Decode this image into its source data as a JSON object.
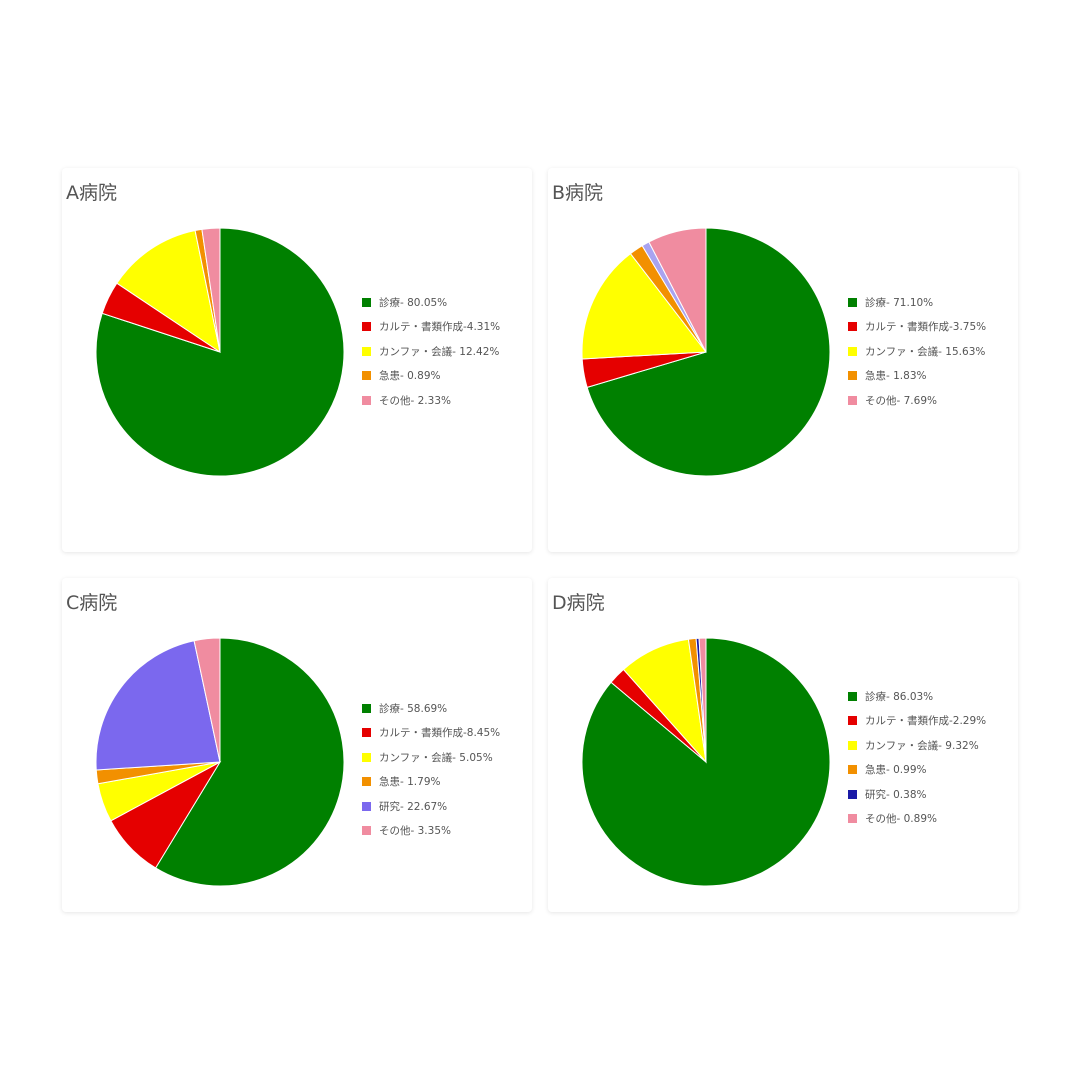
{
  "chart_data": [
    {
      "type": "pie",
      "title": "A病院",
      "slices": [
        {
          "label": "診療- 80.05%",
          "value": 80.05,
          "color": "#008000"
        },
        {
          "label": "カルテ・書類作成-4.31%",
          "value": 4.31,
          "color": "#e50000"
        },
        {
          "label": "カンファ・会議- 12.42%",
          "value": 12.42,
          "color": "#ffff00"
        },
        {
          "label": "急患- 0.89%",
          "value": 0.89,
          "color": "#f29000"
        },
        {
          "label": "その他- 2.33%",
          "value": 2.33,
          "color": "#f08ca0"
        }
      ],
      "legend_position": "right"
    },
    {
      "type": "pie",
      "title": "B病院",
      "slices": [
        {
          "label": "診療- 71.10%",
          "value": 71.1,
          "color": "#008000"
        },
        {
          "label": "カルテ・書類作成-3.75%",
          "value": 3.75,
          "color": "#e50000"
        },
        {
          "label": "カンファ・会議- 15.63%",
          "value": 15.63,
          "color": "#ffff00"
        },
        {
          "label": "急患- 1.83%",
          "value": 1.83,
          "color": "#f29000"
        },
        {
          "label": "",
          "value": 1.0,
          "color": "#a9a3f0"
        },
        {
          "label": "その他- 7.69%",
          "value": 7.69,
          "color": "#f08ca0"
        }
      ],
      "legend_position": "right"
    },
    {
      "type": "pie",
      "title": "C病院",
      "slices": [
        {
          "label": "診療- 58.69%",
          "value": 58.69,
          "color": "#008000"
        },
        {
          "label": "カルテ・書類作成-8.45%",
          "value": 8.45,
          "color": "#e50000"
        },
        {
          "label": "カンファ・会議- 5.05%",
          "value": 5.05,
          "color": "#ffff00"
        },
        {
          "label": "急患- 1.79%",
          "value": 1.79,
          "color": "#f29000"
        },
        {
          "label": "研究- 22.67%",
          "value": 22.67,
          "color": "#7b68ee"
        },
        {
          "label": "その他- 3.35%",
          "value": 3.35,
          "color": "#f08ca0"
        }
      ],
      "legend_position": "right"
    },
    {
      "type": "pie",
      "title": "D病院",
      "slices": [
        {
          "label": "診療- 86.03%",
          "value": 86.03,
          "color": "#008000"
        },
        {
          "label": "カルテ・書類作成-2.29%",
          "value": 2.29,
          "color": "#e50000"
        },
        {
          "label": "カンファ・会議- 9.32%",
          "value": 9.32,
          "color": "#ffff00"
        },
        {
          "label": "急患- 0.99%",
          "value": 0.99,
          "color": "#f29000"
        },
        {
          "label": "研究- 0.38%",
          "value": 0.38,
          "color": "#1a1aa6"
        },
        {
          "label": "その他- 0.89%",
          "value": 0.89,
          "color": "#f08ca0"
        }
      ],
      "legend_position": "right"
    }
  ]
}
